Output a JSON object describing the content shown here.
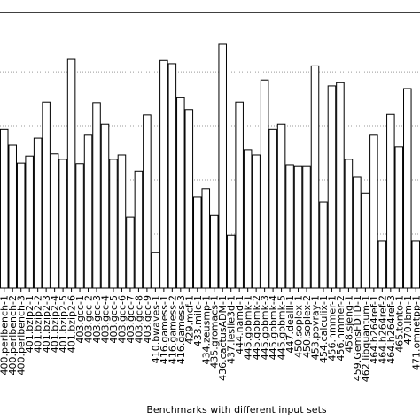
{
  "chart_data": {
    "type": "bar",
    "x_label": "Benchmarks with different input sets",
    "categories": [
      "400.perlbench-1",
      "400.perlbench-2",
      "400.perlbench-3",
      "401.bzip2-1",
      "401.bzip2-2",
      "401.bzip2-3",
      "401.bzip2-4",
      "401.bzip2-5",
      "401.bzip2-6",
      "403.gcc-1",
      "403.gcc-2",
      "403.gcc-3",
      "403.gcc-4",
      "403.gcc-5",
      "403.gcc-6",
      "403.gcc-7",
      "403.gcc-8",
      "403.gcc-9",
      "410.bwaves-1",
      "416.gamess-1",
      "416.gamess-2",
      "416.gamess-3",
      "429.mcf-1",
      "433.milc-1",
      "434.zeusmp-1",
      "435.gromacs-1",
      "436.cactusADM-1",
      "437.leslie3d-1",
      "444.namd-1",
      "445.gobmk-1",
      "445.gobmk-2",
      "445.gobmk-3",
      "445.gobmk-4",
      "445.gobmk-5",
      "447.dealII-1",
      "450.soplex-1",
      "450.soplex-2",
      "453.povray-1",
      "454.calculix-1",
      "456.hmmer-1",
      "456.hmmer-2",
      "458.sjeng-1",
      "459.GemsFDTD-1",
      "462.libquantum-1",
      "464.h264ref-1",
      "464.h264ref-2",
      "464.h264ref-3",
      "465.tonto-1",
      "470.lbm-1",
      "471.omnetpp-1"
    ],
    "values": [
      2.93,
      2.64,
      2.31,
      2.44,
      2.77,
      3.44,
      2.48,
      2.38,
      4.23,
      2.3,
      2.84,
      3.43,
      3.03,
      2.38,
      2.46,
      1.31,
      2.16,
      3.2,
      0.66,
      4.21,
      4.15,
      3.52,
      3.3,
      1.69,
      1.84,
      1.34,
      4.51,
      0.98,
      3.44,
      2.56,
      2.46,
      3.85,
      2.93,
      3.03,
      2.28,
      2.26,
      2.26,
      4.11,
      1.59,
      3.74,
      3.8,
      2.38,
      2.05,
      1.75,
      2.84,
      0.87,
      3.21,
      2.61,
      3.69,
      0.87
    ],
    "color": "#ffffff",
    "ylim": [
      0,
      5.1
    ],
    "yticks": [
      1,
      2,
      3,
      4
    ],
    "grid": true
  }
}
